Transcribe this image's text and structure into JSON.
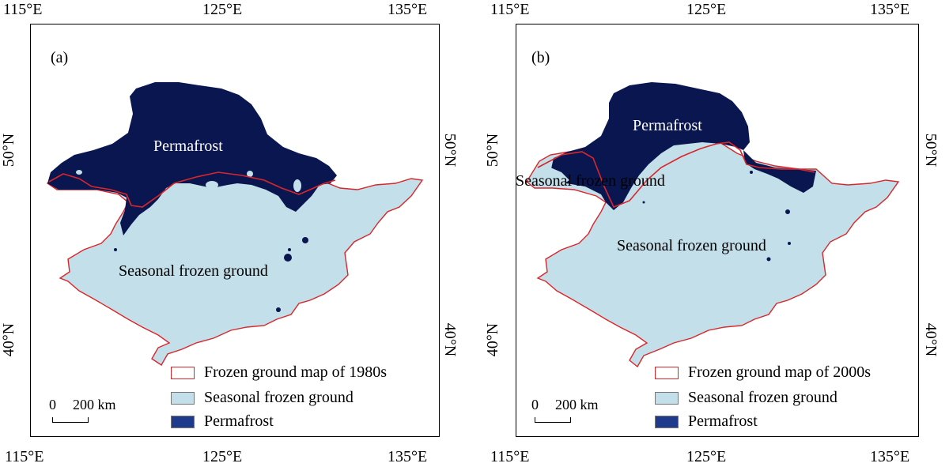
{
  "colors": {
    "permafrost": "#0a1650",
    "seasonal": "#c2dfea",
    "outline_1980s": "#d9262a",
    "legend_permafrost": "#1f3a8a"
  },
  "axes": {
    "lon_ticks": [
      "115°E",
      "125°E",
      "135°E"
    ],
    "lat_ticks": [
      "50°N",
      "40°N"
    ]
  },
  "panels": [
    {
      "id": "a",
      "letter": "(a)",
      "labels": {
        "permafrost": "Permafrost",
        "seasonal": "Seasonal frozen ground"
      },
      "legend": {
        "outline": "Frozen ground map of 1980s",
        "seasonal": "Seasonal frozen ground",
        "permafrost": "Permafrost"
      },
      "scale": {
        "zero": "0",
        "distance": "200 km"
      }
    },
    {
      "id": "b",
      "letter": "(b)",
      "labels": {
        "permafrost": "Permafrost",
        "seasonal_top": "Seasonal frozen ground",
        "seasonal": "Seasonal frozen ground"
      },
      "legend": {
        "outline": "Frozen ground map of 2000s",
        "seasonal": "Seasonal frozen ground",
        "permafrost": "Permafrost"
      },
      "scale": {
        "zero": "0",
        "distance": "200 km"
      }
    }
  ]
}
